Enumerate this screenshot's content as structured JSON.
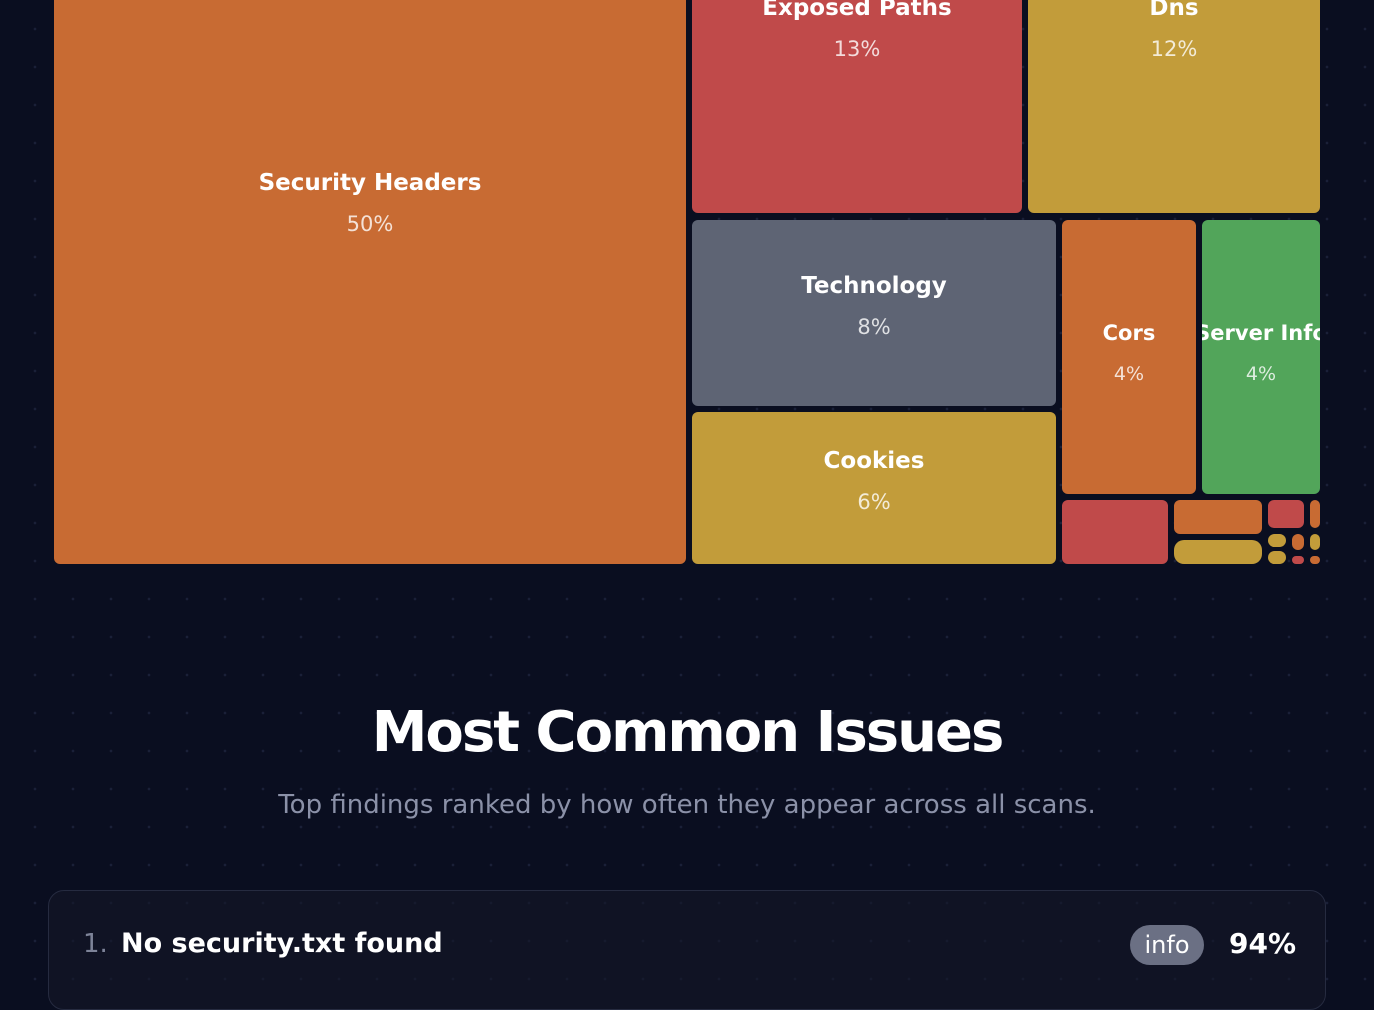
{
  "treemap": {
    "tiles": [
      {
        "label": "Security Headers",
        "percent": "50%",
        "color": "#c86b33"
      },
      {
        "label": "Exposed Paths",
        "percent": "13%",
        "color": "#c04a4a"
      },
      {
        "label": "Dns",
        "percent": "12%",
        "color": "#c29c3a"
      },
      {
        "label": "Technology",
        "percent": "8%",
        "color": "#5e6474"
      },
      {
        "label": "Cookies",
        "percent": "6%",
        "color": "#c29c3a"
      },
      {
        "label": "Cors",
        "percent": "4%",
        "color": "#c86b33"
      },
      {
        "label": "Server Info",
        "percent": "4%",
        "color": "#52a55a"
      }
    ]
  },
  "issues": {
    "title": "Most Common Issues",
    "subtitle": "Top findings ranked by how often they appear across all scans.",
    "items": [
      {
        "rank": "1.",
        "title": "No security.txt found",
        "severity": "info",
        "percent": "94%"
      }
    ]
  }
}
